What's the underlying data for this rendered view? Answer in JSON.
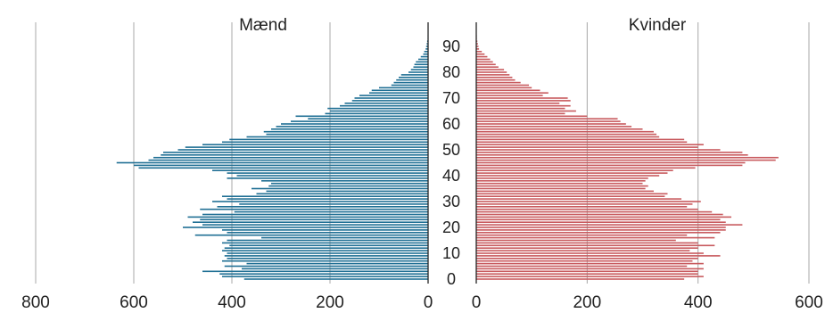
{
  "chart_data": {
    "type": "bar",
    "orientation": "horizontal",
    "subtype": "population-pyramid",
    "grid": true,
    "panels": [
      {
        "title": "Mænd",
        "color": "#1f6f94",
        "xlim": [
          0,
          800
        ],
        "direction": "reversed",
        "ticks": [
          800,
          600,
          400,
          200,
          0
        ],
        "tick_labels": [
          "800",
          "600",
          "400",
          "200",
          "0"
        ]
      },
      {
        "title": "Kvinder",
        "color": "#c85a5e",
        "xlim": [
          0,
          600
        ],
        "direction": "normal",
        "ticks": [
          0,
          200,
          400,
          600
        ],
        "tick_labels": [
          "0",
          "200",
          "400",
          "600"
        ]
      }
    ],
    "age_ticks": [
      0,
      10,
      20,
      30,
      40,
      50,
      60,
      70,
      80,
      90
    ],
    "age_tick_labels": [
      "0",
      "10",
      "20",
      "30",
      "40",
      "50",
      "60",
      "70",
      "80",
      "90"
    ],
    "ages": [
      0,
      1,
      2,
      3,
      4,
      5,
      6,
      7,
      8,
      9,
      10,
      11,
      12,
      13,
      14,
      15,
      16,
      17,
      18,
      19,
      20,
      21,
      22,
      23,
      24,
      25,
      26,
      27,
      28,
      29,
      30,
      31,
      32,
      33,
      34,
      35,
      36,
      37,
      38,
      39,
      40,
      41,
      42,
      43,
      44,
      45,
      46,
      47,
      48,
      49,
      50,
      51,
      52,
      53,
      54,
      55,
      56,
      57,
      58,
      59,
      60,
      61,
      62,
      63,
      64,
      65,
      66,
      67,
      68,
      69,
      70,
      71,
      72,
      73,
      74,
      75,
      76,
      77,
      78,
      79,
      80,
      81,
      82,
      83,
      84,
      85,
      86,
      87,
      88,
      89,
      90,
      91,
      92,
      93,
      94
    ],
    "series": [
      {
        "name": "Mænd",
        "values": [
          375,
          420,
          425,
          460,
          380,
          415,
          370,
          420,
          410,
          415,
          410,
          420,
          415,
          405,
          420,
          410,
          340,
          475,
          410,
          420,
          500,
          460,
          480,
          465,
          490,
          460,
          395,
          465,
          430,
          385,
          440,
          410,
          420,
          350,
          330,
          360,
          325,
          320,
          340,
          410,
          390,
          410,
          440,
          590,
          600,
          635,
          570,
          560,
          545,
          540,
          510,
          495,
          460,
          420,
          405,
          370,
          330,
          335,
          320,
          310,
          300,
          280,
          245,
          270,
          210,
          200,
          205,
          180,
          170,
          155,
          150,
          140,
          120,
          115,
          100,
          75,
          70,
          65,
          60,
          55,
          40,
          35,
          30,
          28,
          25,
          20,
          15,
          10,
          8,
          5,
          4,
          3,
          2,
          1,
          1
        ]
      },
      {
        "name": "Kvinder",
        "values": [
          375,
          410,
          400,
          400,
          410,
          380,
          410,
          390,
          400,
          440,
          410,
          385,
          400,
          430,
          400,
          360,
          430,
          380,
          440,
          450,
          450,
          480,
          450,
          440,
          460,
          445,
          425,
          400,
          380,
          390,
          405,
          370,
          340,
          345,
          320,
          305,
          310,
          300,
          305,
          310,
          330,
          345,
          355,
          395,
          480,
          485,
          540,
          545,
          490,
          480,
          440,
          400,
          410,
          380,
          375,
          330,
          325,
          320,
          300,
          280,
          270,
          260,
          255,
          200,
          160,
          180,
          160,
          170,
          150,
          170,
          165,
          120,
          130,
          115,
          100,
          95,
          80,
          70,
          65,
          60,
          55,
          50,
          40,
          35,
          30,
          25,
          20,
          15,
          10,
          5,
          4,
          3,
          2,
          1,
          1
        ]
      }
    ]
  }
}
